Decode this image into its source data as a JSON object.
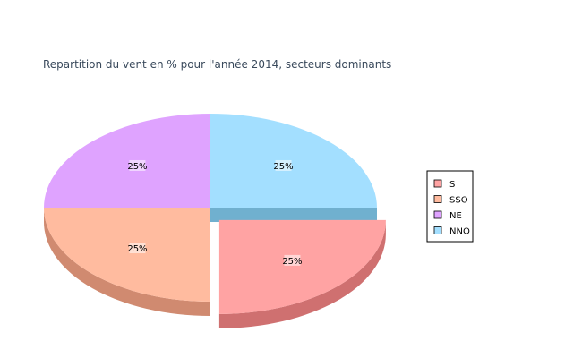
{
  "chart_data": {
    "type": "pie",
    "title": "Repartition du vent en % pour l'année 2014, secteurs dominants",
    "categories": [
      "S",
      "SSO",
      "NE",
      "NNO"
    ],
    "values": [
      25,
      25,
      25,
      25
    ],
    "value_labels": [
      "25%",
      "25%",
      "25%",
      "25%"
    ],
    "colors": [
      "#ffa3a3",
      "#ffbb9f",
      "#dfa3ff",
      "#a3dfff"
    ],
    "side_colors": [
      "#cf7070",
      "#d08a70",
      "#b070cf",
      "#70b0cf"
    ],
    "legend": {
      "entries": [
        "S",
        "SSO",
        "NE",
        "NNO"
      ],
      "position": "right"
    },
    "style": "3d",
    "exploded": "S"
  }
}
